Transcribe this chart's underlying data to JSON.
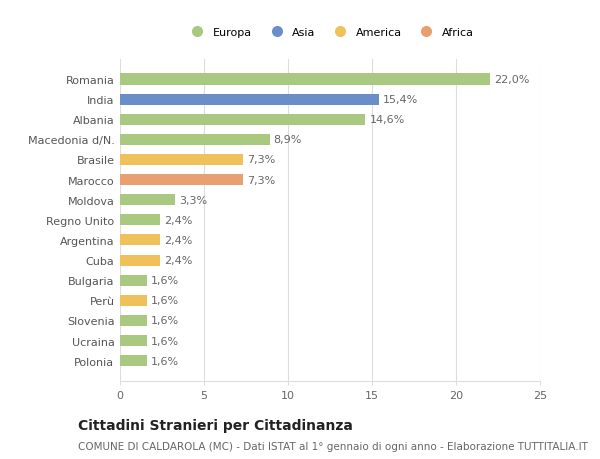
{
  "categories": [
    "Romania",
    "India",
    "Albania",
    "Macedonia d/N.",
    "Brasile",
    "Marocco",
    "Moldova",
    "Regno Unito",
    "Argentina",
    "Cuba",
    "Bulgaria",
    "Perù",
    "Slovenia",
    "Ucraina",
    "Polonia"
  ],
  "values": [
    22.0,
    15.4,
    14.6,
    8.9,
    7.3,
    7.3,
    3.3,
    2.4,
    2.4,
    2.4,
    1.6,
    1.6,
    1.6,
    1.6,
    1.6
  ],
  "labels": [
    "22,0%",
    "15,4%",
    "14,6%",
    "8,9%",
    "7,3%",
    "7,3%",
    "3,3%",
    "2,4%",
    "2,4%",
    "2,4%",
    "1,6%",
    "1,6%",
    "1,6%",
    "1,6%",
    "1,6%"
  ],
  "continents": [
    "Europa",
    "Asia",
    "Europa",
    "Europa",
    "America",
    "Africa",
    "Europa",
    "Europa",
    "America",
    "America",
    "Europa",
    "America",
    "Europa",
    "Europa",
    "Europa"
  ],
  "continent_colors": {
    "Europa": "#a8c97f",
    "Asia": "#6a8fc8",
    "America": "#f0c05a",
    "Africa": "#e8a070"
  },
  "legend_order": [
    "Europa",
    "Asia",
    "America",
    "Africa"
  ],
  "title": "Cittadini Stranieri per Cittadinanza",
  "subtitle": "COMUNE DI CALDAROLA (MC) - Dati ISTAT al 1° gennaio di ogni anno - Elaborazione TUTTITALIA.IT",
  "xlim": [
    0,
    25
  ],
  "xticks": [
    0,
    5,
    10,
    15,
    20,
    25
  ],
  "background_color": "#ffffff",
  "grid_color": "#dddddd",
  "bar_height": 0.55,
  "label_fontsize": 8,
  "tick_fontsize": 8,
  "title_fontsize": 10,
  "subtitle_fontsize": 7.5
}
